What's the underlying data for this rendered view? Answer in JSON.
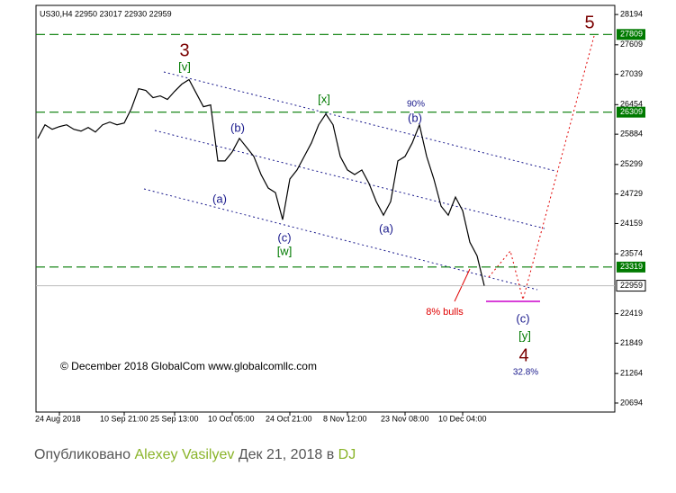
{
  "chart_data": {
    "type": "line",
    "title": "US30,H4  22950 23017 22930 22959",
    "categories": [
      null,
      null,
      null,
      "24 Aug 2018",
      null,
      null,
      null,
      null,
      null,
      null,
      null,
      null,
      "10 Sep 21:00",
      null,
      null,
      null,
      null,
      null,
      null,
      "25 Sep 13:00",
      null,
      null,
      null,
      null,
      null,
      null,
      null,
      "10 Oct 05:00",
      null,
      null,
      null,
      null,
      null,
      null,
      null,
      "24 Oct 21:00",
      null,
      null,
      null,
      null,
      null,
      null,
      null,
      "8 Nov 12:00",
      null,
      null,
      null,
      null,
      null,
      null,
      null,
      "23 Nov 08:00",
      null,
      null,
      null,
      null,
      null,
      null,
      null,
      "10 Dec 04:00",
      null,
      null,
      null
    ],
    "series": [
      {
        "color": "#000000",
        "values": [
          25803,
          26065,
          25978,
          26030,
          26065,
          25978,
          25943,
          26013,
          25925,
          26065,
          26117,
          26065,
          26100,
          26379,
          26763,
          26728,
          26589,
          26623,
          26554,
          26711,
          26850,
          26938,
          26676,
          26414,
          26449,
          25367,
          25367,
          25542,
          25803,
          25629,
          25454,
          25105,
          24844,
          24756,
          24233,
          25018,
          25193,
          25454,
          25716,
          26065,
          26274,
          26065,
          25454,
          25193,
          25105,
          25193,
          24931,
          24582,
          24320,
          24582,
          25367,
          25454,
          25716,
          26065,
          25454,
          25018,
          24495,
          24320,
          24669,
          24407,
          23797,
          23535,
          22959
        ]
      }
    ],
    "ylim": [
      20520,
      28370
    ],
    "yticks": [
      20694,
      21264,
      21849,
      22419,
      23574,
      24159,
      24729,
      25299,
      25884,
      26454,
      27039,
      27609,
      28194
    ],
    "levels": [
      27809,
      26309,
      23319
    ],
    "level_color": "#007a00",
    "last_price": 22959,
    "annotations": [
      "3",
      "[v]",
      "(b)",
      "(a)",
      "(c)",
      "[w]",
      "[x]",
      "90%",
      "(b)",
      "(a)",
      "8% bulls",
      "(c)",
      "[y]",
      "4",
      "32.8%",
      "5"
    ],
    "copyright": "© December 2018 GlobalCom www.globalcomllc.com"
  },
  "footer": {
    "published": "Опубликовано",
    "author": "Alexey Vasilyev",
    "date": "Дек 21, 2018 в",
    "source": "DJ"
  }
}
